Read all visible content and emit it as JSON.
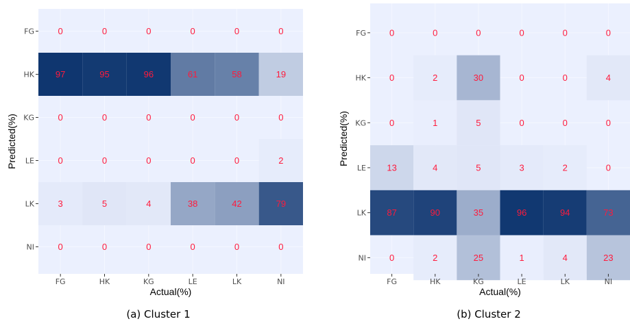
{
  "chart_data": [
    {
      "type": "heatmap",
      "caption": "(a) Cluster 1",
      "xlabel": "Actual(%)",
      "ylabel": "Predicted(%)",
      "x_categories": [
        "FG",
        "HK",
        "KG",
        "LE",
        "LK",
        "NI"
      ],
      "y_categories": [
        "FG",
        "HK",
        "KG",
        "LE",
        "LK",
        "NI"
      ],
      "values": [
        [
          0,
          0,
          0,
          0,
          0,
          0
        ],
        [
          97,
          95,
          96,
          61,
          58,
          19
        ],
        [
          0,
          0,
          0,
          0,
          0,
          0
        ],
        [
          0,
          0,
          0,
          0,
          0,
          2
        ],
        [
          3,
          5,
          4,
          38,
          42,
          79
        ],
        [
          0,
          0,
          0,
          0,
          0,
          0
        ]
      ]
    },
    {
      "type": "heatmap",
      "caption": "(b) Cluster 2",
      "xlabel": "Actual(%)",
      "ylabel": "Predicted(%)",
      "x_categories": [
        "FG",
        "HK",
        "KG",
        "LE",
        "LK",
        "NI"
      ],
      "y_categories": [
        "FG",
        "HK",
        "KG",
        "LE",
        "LK",
        "NI"
      ],
      "values": [
        [
          0,
          0,
          0,
          0,
          0,
          0
        ],
        [
          0,
          2,
          30,
          0,
          0,
          4
        ],
        [
          0,
          1,
          5,
          0,
          0,
          0
        ],
        [
          13,
          4,
          5,
          3,
          2,
          0
        ],
        [
          87,
          90,
          35,
          96,
          94,
          73
        ],
        [
          0,
          2,
          25,
          1,
          4,
          23
        ]
      ]
    }
  ],
  "colors": {
    "low": "#ebf0fe",
    "high": "#08306b",
    "label": "#ff1a3c"
  }
}
